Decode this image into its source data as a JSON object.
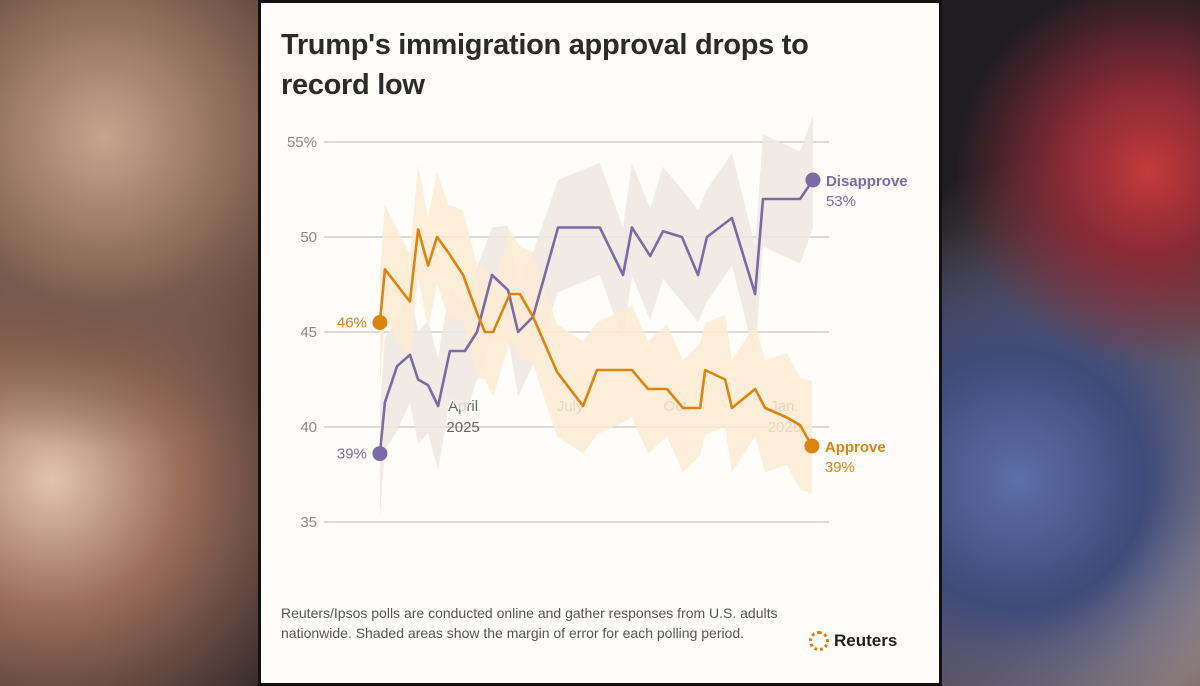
{
  "chart_data": {
    "type": "line",
    "title": "Trump's immigration approval drops to record low",
    "xlabel": "",
    "ylabel": "",
    "ylim": [
      35,
      55
    ],
    "y_ticks": [
      {
        "value": 55,
        "label": "55%"
      },
      {
        "value": 50,
        "label": "50"
      },
      {
        "value": 45,
        "label": "45"
      },
      {
        "value": 40,
        "label": "40"
      },
      {
        "value": 35,
        "label": "35"
      }
    ],
    "x_unit": "months since Jan 1, 2025",
    "x_ticks": [
      {
        "value": 3,
        "line1": "April",
        "line2": "2025"
      },
      {
        "value": 6,
        "line1": "July",
        "line2": ""
      },
      {
        "value": 9,
        "line1": "Oct.",
        "line2": ""
      },
      {
        "value": 12,
        "line1": "Jan.",
        "line2": "2026"
      }
    ],
    "grid": true,
    "series": [
      {
        "name": "Disapprove",
        "color": "#7b6aa6",
        "band_color": "#eee6e2",
        "start_label": "39%",
        "end_label": "53%",
        "x": [
          0.67,
          0.81,
          1.15,
          1.51,
          1.74,
          2.02,
          2.3,
          2.63,
          3.05,
          3.39,
          3.81,
          4.26,
          4.54,
          4.96,
          5.66,
          6.83,
          7.48,
          7.73,
          8.24,
          8.6,
          9.13,
          9.58,
          9.83,
          10.53,
          11.18,
          11.4,
          12.44,
          12.8
        ],
        "y": [
          38.6,
          41.3,
          43.2,
          43.8,
          42.5,
          42.2,
          41.1,
          44,
          44,
          45,
          48,
          47.2,
          45,
          45.8,
          50.5,
          50.5,
          48,
          50.5,
          49,
          50.3,
          50,
          48,
          50,
          51,
          47,
          52,
          52,
          53
        ],
        "margin": 2.8
      },
      {
        "name": "Approve",
        "color": "#dd8410",
        "band_color": "#fdebd5",
        "start_label": "46%",
        "end_label": "39%",
        "x": [
          0.67,
          0.81,
          1.51,
          1.74,
          2.02,
          2.27,
          2.58,
          3.0,
          3.39,
          3.61,
          3.84,
          4.31,
          4.59,
          4.96,
          5.63,
          6.36,
          6.75,
          7.73,
          8.18,
          8.71,
          9.16,
          9.64,
          9.78,
          10.34,
          10.53,
          11.18,
          11.46,
          12.07,
          12.44,
          12.77
        ],
        "y": [
          45.5,
          48.3,
          46.6,
          50.4,
          48.5,
          50,
          49.2,
          48,
          46,
          45,
          45,
          47,
          47,
          45.8,
          42.9,
          41.1,
          43,
          43,
          42,
          42,
          41,
          41,
          43,
          42.5,
          41,
          42,
          41,
          40.5,
          40.1,
          39
        ],
        "margin": 2.8
      }
    ],
    "note": "Reuters/Ipsos polls are conducted online and gather responses from U.S. adults nationwide. Shaded areas show the margin of error for each polling period.",
    "source": "Reuters"
  }
}
